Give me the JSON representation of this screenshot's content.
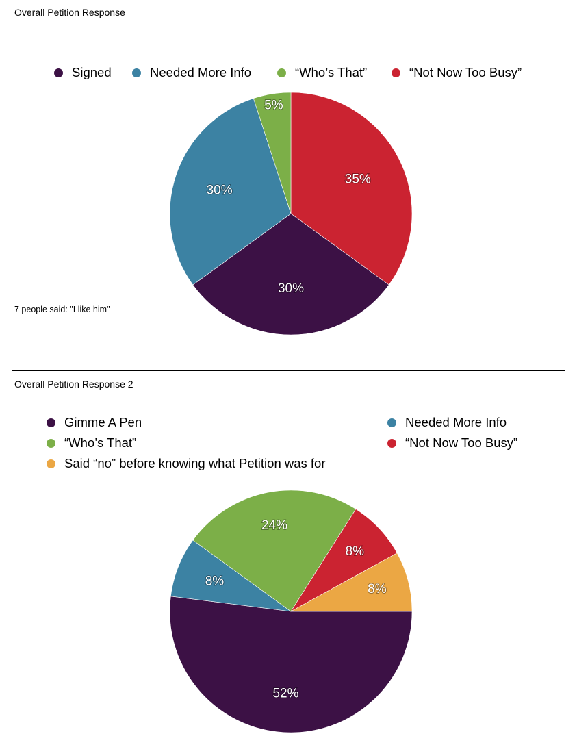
{
  "colors": {
    "purple": "#3c1145",
    "blue": "#3c82a3",
    "green": "#7caf48",
    "red": "#cb2331",
    "orange": "#eba744"
  },
  "note": "7 people said: \"I like him\"",
  "chart_data": [
    {
      "type": "pie",
      "title": "Overall Petition Response",
      "legend_position": "top",
      "slices": [
        {
          "label": "Signed",
          "value": 30,
          "value_label": "30%",
          "color": "#3c1145"
        },
        {
          "label": "Needed More Info",
          "value": 30,
          "value_label": "30%",
          "color": "#3c82a3"
        },
        {
          "label": "“Who’s That”",
          "value": 5,
          "value_label": "5%",
          "color": "#7caf48"
        },
        {
          "label": "“Not Now Too Busy”",
          "value": 35,
          "value_label": "35%",
          "color": "#cb2331"
        }
      ]
    },
    {
      "type": "pie",
      "title": "Overall Petition Response 2",
      "legend_position": "top",
      "slices": [
        {
          "label": "Gimme A Pen",
          "value": 52,
          "value_label": "52%",
          "color": "#3c1145"
        },
        {
          "label": "Needed More Info",
          "value": 8,
          "value_label": "8%",
          "color": "#3c82a3"
        },
        {
          "label": "“Who’s That”",
          "value": 24,
          "value_label": "24%",
          "color": "#7caf48"
        },
        {
          "label": "“Not Now Too Busy”",
          "value": 8,
          "value_label": "8%",
          "color": "#cb2331"
        },
        {
          "label": "Said “no” before knowing what Petition was for",
          "value": 8,
          "value_label": "8%",
          "color": "#eba744"
        }
      ]
    }
  ]
}
